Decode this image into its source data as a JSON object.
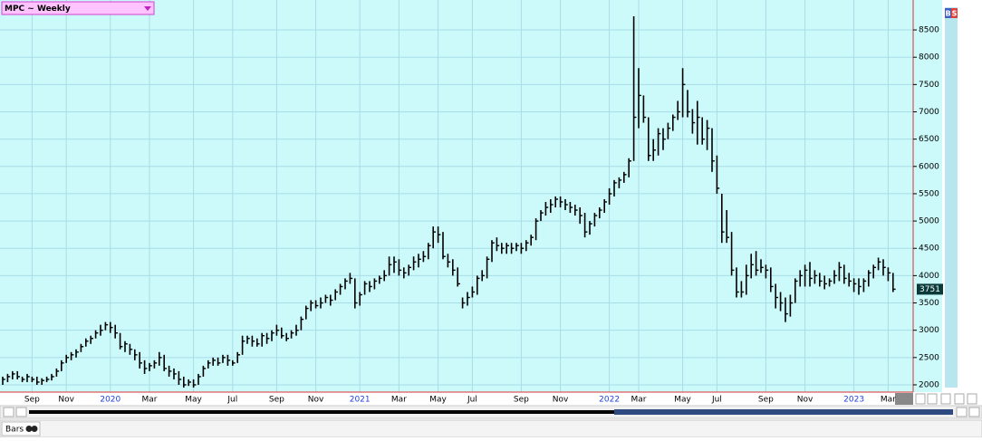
{
  "chart_data": {
    "type": "ohlc",
    "title": "MPC ~ Weekly",
    "color": "#000000",
    "grid": true,
    "ylim": [
      1867,
      9048
    ],
    "yticks": [
      2000,
      2500,
      3000,
      3500,
      4000,
      4500,
      5000,
      5500,
      6000,
      6500,
      7000,
      7500,
      8000,
      8500
    ],
    "categories": [
      null,
      null,
      null,
      null,
      null,
      null,
      "Sep",
      null,
      null,
      null,
      null,
      null,
      null,
      "Nov",
      null,
      null,
      null,
      null,
      null,
      null,
      null,
      null,
      "2020",
      null,
      null,
      null,
      null,
      null,
      null,
      null,
      "Mar",
      null,
      null,
      null,
      null,
      null,
      null,
      null,
      null,
      "May",
      null,
      null,
      null,
      null,
      null,
      null,
      null,
      "Jul",
      null,
      null,
      null,
      null,
      null,
      null,
      null,
      null,
      "Sep",
      null,
      null,
      null,
      null,
      null,
      null,
      null,
      "Nov",
      null,
      null,
      null,
      null,
      null,
      null,
      null,
      null,
      "2021",
      null,
      null,
      null,
      null,
      null,
      null,
      null,
      "Mar",
      null,
      null,
      null,
      null,
      null,
      null,
      null,
      "May",
      null,
      null,
      null,
      null,
      null,
      null,
      "Jul",
      null,
      null,
      null,
      null,
      null,
      null,
      null,
      null,
      null,
      "Sep",
      null,
      null,
      null,
      null,
      null,
      null,
      null,
      "Nov",
      null,
      null,
      null,
      null,
      null,
      null,
      null,
      null,
      null,
      "2022",
      null,
      null,
      null,
      null,
      null,
      "Mar",
      null,
      null,
      null,
      null,
      null,
      null,
      null,
      null,
      "May",
      null,
      null,
      null,
      null,
      null,
      null,
      "Jul",
      null,
      null,
      null,
      null,
      null,
      null,
      null,
      null,
      null,
      "Sep",
      null,
      null,
      null,
      null,
      null,
      null,
      null,
      "Nov",
      null,
      null,
      null,
      null,
      null,
      null,
      null,
      null,
      null,
      "2023",
      null,
      null,
      null,
      null,
      null,
      null,
      "Mar",
      null
    ],
    "high": [
      2150,
      2200,
      2250,
      2250,
      2150,
      2200,
      2150,
      2150,
      2120,
      2150,
      2200,
      2300,
      2450,
      2550,
      2600,
      2650,
      2750,
      2850,
      2900,
      3000,
      3100,
      3150,
      3150,
      3100,
      2950,
      2800,
      2750,
      2650,
      2600,
      2450,
      2400,
      2450,
      2600,
      2550,
      2350,
      2300,
      2250,
      2150,
      2100,
      2100,
      2200,
      2350,
      2450,
      2500,
      2500,
      2550,
      2550,
      2450,
      2600,
      2900,
      2900,
      2900,
      2850,
      2950,
      2950,
      3000,
      3100,
      3050,
      2950,
      3000,
      3100,
      3250,
      3450,
      3550,
      3550,
      3600,
      3650,
      3650,
      3750,
      3850,
      3950,
      4050,
      3950,
      3700,
      3900,
      3900,
      3950,
      4000,
      4100,
      4350,
      4350,
      4300,
      4150,
      4200,
      4350,
      4400,
      4450,
      4600,
      4900,
      4900,
      4800,
      4400,
      4300,
      4150,
      3600,
      3700,
      3800,
      4000,
      4100,
      4350,
      4650,
      4700,
      4600,
      4600,
      4600,
      4600,
      4600,
      4650,
      4750,
      5050,
      5200,
      5350,
      5400,
      5450,
      5450,
      5400,
      5350,
      5300,
      5250,
      5150,
      5000,
      5150,
      5250,
      5400,
      5600,
      5750,
      5800,
      5900,
      6150,
      8750,
      7800,
      7300,
      6900,
      6500,
      6700,
      6700,
      6800,
      6950,
      7200,
      7800,
      7400,
      7050,
      7200,
      6900,
      6850,
      6700,
      6200,
      5500,
      5200,
      4800,
      4150,
      3900,
      4200,
      4400,
      4450,
      4300,
      4200,
      4150,
      3850,
      3700,
      3600,
      3650,
      3950,
      4100,
      4200,
      4250,
      4100,
      4050,
      4000,
      3950,
      4100,
      4250,
      4200,
      4050,
      3950,
      3950,
      3950,
      4100,
      4200,
      4330,
      4300,
      4150,
      4050
    ],
    "low": [
      2000,
      2050,
      2100,
      2100,
      2050,
      2050,
      2050,
      2000,
      2000,
      2050,
      2080,
      2150,
      2250,
      2400,
      2450,
      2500,
      2600,
      2700,
      2750,
      2850,
      2900,
      3000,
      2950,
      2850,
      2650,
      2600,
      2550,
      2450,
      2300,
      2200,
      2250,
      2300,
      2350,
      2250,
      2150,
      2100,
      2000,
      1950,
      1980,
      1950,
      2000,
      2150,
      2300,
      2350,
      2350,
      2400,
      2350,
      2350,
      2400,
      2550,
      2750,
      2700,
      2700,
      2700,
      2750,
      2800,
      2900,
      2850,
      2800,
      2850,
      2900,
      3000,
      3200,
      3350,
      3400,
      3400,
      3500,
      3450,
      3550,
      3650,
      3750,
      3850,
      3400,
      3450,
      3650,
      3700,
      3750,
      3850,
      3900,
      4000,
      4050,
      4000,
      3950,
      4000,
      4100,
      4150,
      4250,
      4300,
      4500,
      4600,
      4300,
      4150,
      4000,
      3800,
      3400,
      3450,
      3600,
      3650,
      3900,
      3950,
      4250,
      4450,
      4400,
      4400,
      4400,
      4450,
      4400,
      4450,
      4550,
      4650,
      5000,
      5100,
      5150,
      5250,
      5250,
      5200,
      5150,
      5100,
      4950,
      4700,
      4750,
      4900,
      5050,
      5150,
      5300,
      5450,
      5600,
      5700,
      5800,
      6100,
      6700,
      6800,
      6100,
      6100,
      6200,
      6300,
      6500,
      6650,
      6850,
      6900,
      6900,
      6600,
      6400,
      6400,
      6300,
      5900,
      5500,
      4600,
      4600,
      4000,
      3600,
      3600,
      3650,
      3950,
      4000,
      4050,
      3950,
      3700,
      3400,
      3350,
      3150,
      3250,
      3500,
      3800,
      3800,
      3800,
      3850,
      3800,
      3750,
      3800,
      3850,
      3900,
      3850,
      3800,
      3700,
      3650,
      3700,
      3800,
      3950,
      4100,
      4000,
      3900,
      3700
    ],
    "close": [
      2100,
      2150,
      2200,
      2150,
      2100,
      2150,
      2100,
      2050,
      2080,
      2100,
      2150,
      2250,
      2400,
      2500,
      2550,
      2600,
      2700,
      2800,
      2850,
      2950,
      3000,
      3100,
      3050,
      2950,
      2700,
      2750,
      2650,
      2550,
      2400,
      2300,
      2350,
      2400,
      2500,
      2300,
      2250,
      2200,
      2100,
      2000,
      2050,
      2000,
      2150,
      2300,
      2400,
      2450,
      2400,
      2500,
      2450,
      2400,
      2550,
      2800,
      2850,
      2800,
      2750,
      2900,
      2850,
      2950,
      3000,
      2900,
      2850,
      2950,
      3000,
      3200,
      3400,
      3500,
      3450,
      3500,
      3600,
      3550,
      3700,
      3800,
      3900,
      3950,
      3500,
      3650,
      3850,
      3800,
      3900,
      3950,
      4000,
      4200,
      4250,
      4100,
      4050,
      4150,
      4250,
      4300,
      4350,
      4550,
      4800,
      4750,
      4350,
      4250,
      4100,
      3850,
      3500,
      3600,
      3700,
      3950,
      4000,
      4300,
      4600,
      4550,
      4500,
      4550,
      4500,
      4550,
      4500,
      4600,
      4700,
      5000,
      5150,
      5250,
      5300,
      5400,
      5350,
      5300,
      5250,
      5200,
      5100,
      4800,
      4950,
      5100,
      5200,
      5350,
      5500,
      5700,
      5750,
      5850,
      6100,
      6900,
      7300,
      6900,
      6200,
      6300,
      6600,
      6500,
      6700,
      6900,
      7000,
      7500,
      7000,
      6800,
      6900,
      6500,
      6700,
      6100,
      5600,
      4800,
      4700,
      4100,
      3700,
      3700,
      4000,
      4200,
      4100,
      4150,
      4100,
      3800,
      3600,
      3500,
      3300,
      3500,
      3900,
      4000,
      4100,
      3950,
      4000,
      3900,
      3850,
      3900,
      4000,
      4150,
      3950,
      3900,
      3850,
      3800,
      3900,
      4050,
      4150,
      4250,
      4150,
      4050,
      3751
    ]
  },
  "toolbar": {
    "buy": "B",
    "sell": "S"
  },
  "status": {
    "chart_style": "Bars"
  }
}
